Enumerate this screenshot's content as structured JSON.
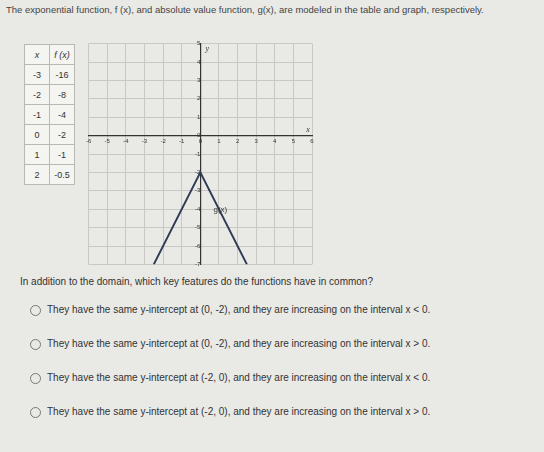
{
  "header": {
    "text": "The exponential function, f (x), and absolute value function, g(x), are modeled in the table and graph, respectively."
  },
  "table": {
    "columns": [
      "x",
      "f (x)"
    ],
    "rows": [
      [
        -3,
        -16
      ],
      [
        -2,
        -8
      ],
      [
        -1,
        -4
      ],
      [
        0,
        -2
      ],
      [
        1,
        -1
      ],
      [
        2,
        -0.5
      ]
    ]
  },
  "chart_data": {
    "type": "line",
    "x_label": "x",
    "y_label": "y",
    "xlim": [
      -6,
      6
    ],
    "xticks": [
      -6,
      -5,
      -4,
      -3,
      -2,
      -1,
      0,
      1,
      2,
      3,
      4,
      5,
      6
    ],
    "ylim": [
      -7,
      5
    ],
    "yticks": [
      -7,
      -6,
      -5,
      -4,
      -3,
      -2,
      -1,
      0,
      1,
      2,
      3,
      4,
      5
    ],
    "grid": true,
    "series": [
      {
        "name": "g(x)",
        "color": "#2e3b55",
        "x": [
          -2.5,
          0,
          2.5
        ],
        "values": [
          -7,
          -2,
          -7
        ]
      }
    ]
  },
  "question": "In addition to the domain, which key features do the functions have in common?",
  "options": [
    "They have the same y-intercept at (0, -2), and they are increasing on the interval x < 0.",
    "They have the same y-intercept at (0, -2), and they are increasing on the interval x > 0.",
    "They have the same y-intercept at (-2, 0), and they are increasing on the interval x < 0.",
    "They have the same y-intercept at (-2, 0), and they are increasing on the interval x > 0."
  ]
}
